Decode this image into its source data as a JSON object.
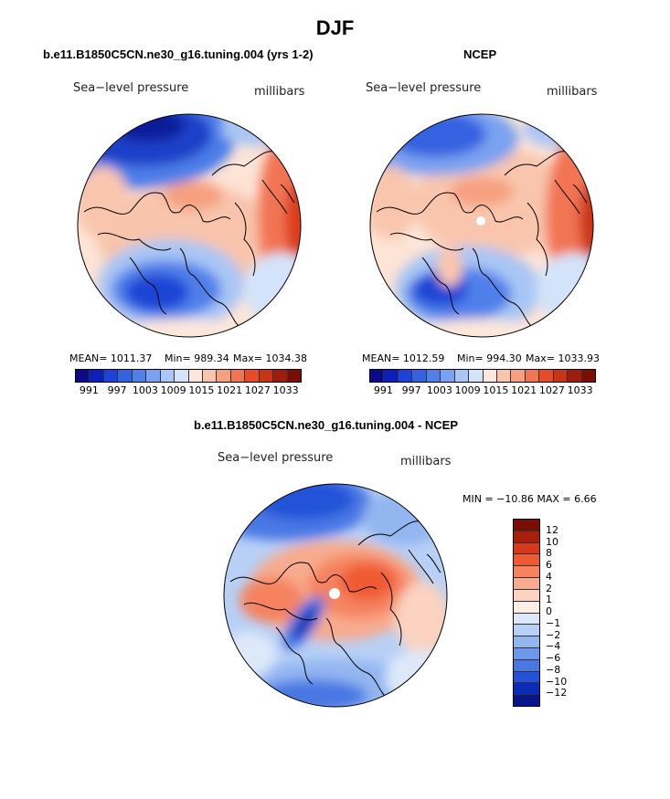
{
  "title": "DJF",
  "panels": {
    "model": {
      "title": "b.e11.B1850C5CN.ne30_g16.tuning.004 (yrs 1-2)",
      "left_label": "Sea−level pressure",
      "right_label": "millibars",
      "mean": "MEAN= 1011.37",
      "min": "Min= 989.34",
      "max": "Max= 1034.38"
    },
    "obs": {
      "title": "NCEP",
      "left_label": "Sea−level pressure",
      "right_label": "millibars",
      "mean": "MEAN= 1012.59",
      "min": "Min= 994.30",
      "max": "Max= 1033.93"
    },
    "diff": {
      "title": "b.e11.B1850C5CN.ne30_g16.tuning.004 - NCEP",
      "left_label": "Sea−level pressure",
      "right_label": "millibars",
      "minmax": "MIN =  −10.86  MAX =     6.66"
    }
  },
  "abs_colorbar": {
    "colors": [
      "#0a0a8a",
      "#0b20b8",
      "#1b44d6",
      "#3462e0",
      "#4f80ea",
      "#7aa2f0",
      "#a9c6f4",
      "#d3e4fa",
      "#fde7dc",
      "#f9c6ad",
      "#f6a07f",
      "#f27553",
      "#e64c2a",
      "#c83418",
      "#9e1d0c",
      "#7a0e05"
    ],
    "ticks": [
      "991",
      "997",
      "1003",
      "1009",
      "1015",
      "1021",
      "1027",
      "1033"
    ]
  },
  "diff_colorbar": {
    "colors": [
      "#7a0e05",
      "#a8200d",
      "#d8381b",
      "#f05a33",
      "#f5835e",
      "#f8ab8d",
      "#fbd3c0",
      "#fdeee6",
      "#dde9fb",
      "#b8d0f6",
      "#93b6f1",
      "#6e98ec",
      "#4878e4",
      "#2452d8",
      "#0b2cb8",
      "#07148a"
    ],
    "ticks": [
      "12",
      "10",
      "8",
      "6",
      "4",
      "2",
      "1",
      "0",
      "−1",
      "−2",
      "−4",
      "−6",
      "−8",
      "−10",
      "−12"
    ]
  }
}
